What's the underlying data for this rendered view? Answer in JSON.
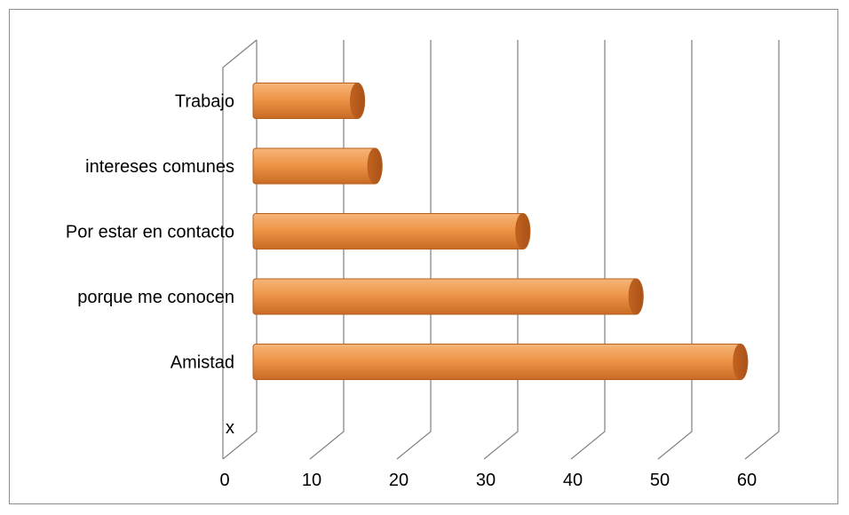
{
  "chart_data": {
    "type": "bar",
    "orientation": "horizontal",
    "style": "3d-cylinder",
    "categories": [
      "x",
      "Amistad",
      "porque me conocen",
      "Por estar en contacto",
      "intereses comunes",
      "Trabajo"
    ],
    "values": [
      0,
      56,
      44,
      31,
      14,
      12
    ],
    "xlim": [
      0,
      60
    ],
    "xticks": [
      0,
      10,
      20,
      30,
      40,
      50,
      60
    ],
    "title": "",
    "xlabel": "",
    "ylabel": "",
    "grid": true,
    "legend": "none",
    "bar_color": "#E8893A",
    "bar_edge_color": "#B5601F"
  }
}
